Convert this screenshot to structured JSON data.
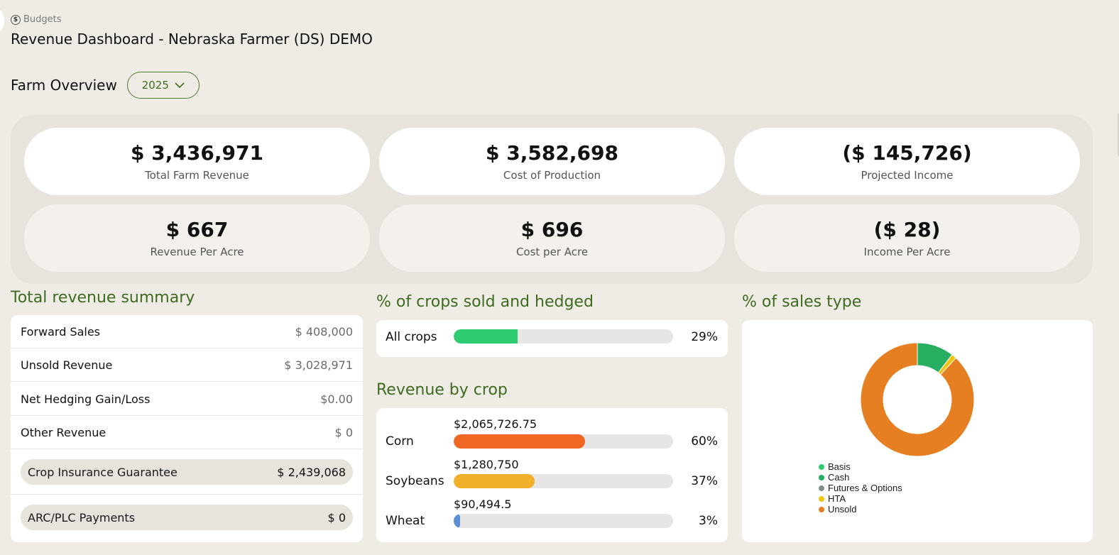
{
  "breadcrumb": {
    "icon": "dollar-circle-icon",
    "label": "Budgets"
  },
  "page_title": "Revenue Dashboard - Nebraska Farmer (DS) DEMO",
  "overview": {
    "title": "Farm Overview",
    "year": "2025"
  },
  "stats": [
    {
      "value": "$ 3,436,971",
      "label": "Total Farm Revenue"
    },
    {
      "value": "$ 3,582,698",
      "label": "Cost of Production"
    },
    {
      "value": "($ 145,726)",
      "label": "Projected Income"
    },
    {
      "value": "$ 667",
      "label": "Revenue Per Acre"
    },
    {
      "value": "$ 696",
      "label": "Cost per Acre"
    },
    {
      "value": "($ 28)",
      "label": "Income Per Acre"
    }
  ],
  "revenue_summary": {
    "title": "Total revenue summary",
    "rows": [
      {
        "label": "Forward Sales",
        "value": "$ 408,000"
      },
      {
        "label": "Unsold Revenue",
        "value": "$ 3,028,971"
      },
      {
        "label": "Net Hedging Gain/Loss",
        "value": "$0.00"
      },
      {
        "label": "Other Revenue",
        "value": "$ 0"
      }
    ],
    "highlight_rows": [
      {
        "label": "Crop Insurance Guarantee",
        "value": "$ 2,439,068"
      },
      {
        "label": "ARC/PLC Payments",
        "value": "$ 0"
      }
    ]
  },
  "crops_sold": {
    "title": "% of crops sold and hedged",
    "label": "All crops",
    "percent_text": "29%",
    "percent": 29,
    "color": "#2ecc71"
  },
  "revenue_by_crop": {
    "title": "Revenue by crop",
    "crops": [
      {
        "name": "Corn",
        "amount": "$2,065,726.75",
        "percent_text": "60%",
        "percent": 60,
        "color": "#f06623"
      },
      {
        "name": "Soybeans",
        "amount": "$1,280,750",
        "percent_text": "37%",
        "percent": 37,
        "color": "#f0b02a"
      },
      {
        "name": "Wheat",
        "amount": "$90,494.5",
        "percent_text": "3%",
        "percent": 3,
        "color": "#5b8fd6"
      }
    ]
  },
  "sales_type": {
    "title": "% of sales type",
    "legend": [
      {
        "label": "Basis",
        "color": "#2ecc71"
      },
      {
        "label": "Cash",
        "color": "#27ae60"
      },
      {
        "label": "Futures & Options",
        "color": "#7f8c8d"
      },
      {
        "label": "HTA",
        "color": "#f1c40f"
      },
      {
        "label": "Unsold",
        "color": "#e67e22"
      }
    ]
  },
  "chart_data": {
    "type": "pie",
    "categories": [
      "Basis",
      "Cash",
      "Futures & Options",
      "HTA",
      "Unsold"
    ],
    "values": [
      0,
      10.5,
      0,
      1.4,
      88.1
    ],
    "colors": [
      "#2ecc71",
      "#27ae60",
      "#7f8c8d",
      "#f1c40f",
      "#e67e22"
    ],
    "donut": true,
    "legend_position": "bottom-left"
  }
}
